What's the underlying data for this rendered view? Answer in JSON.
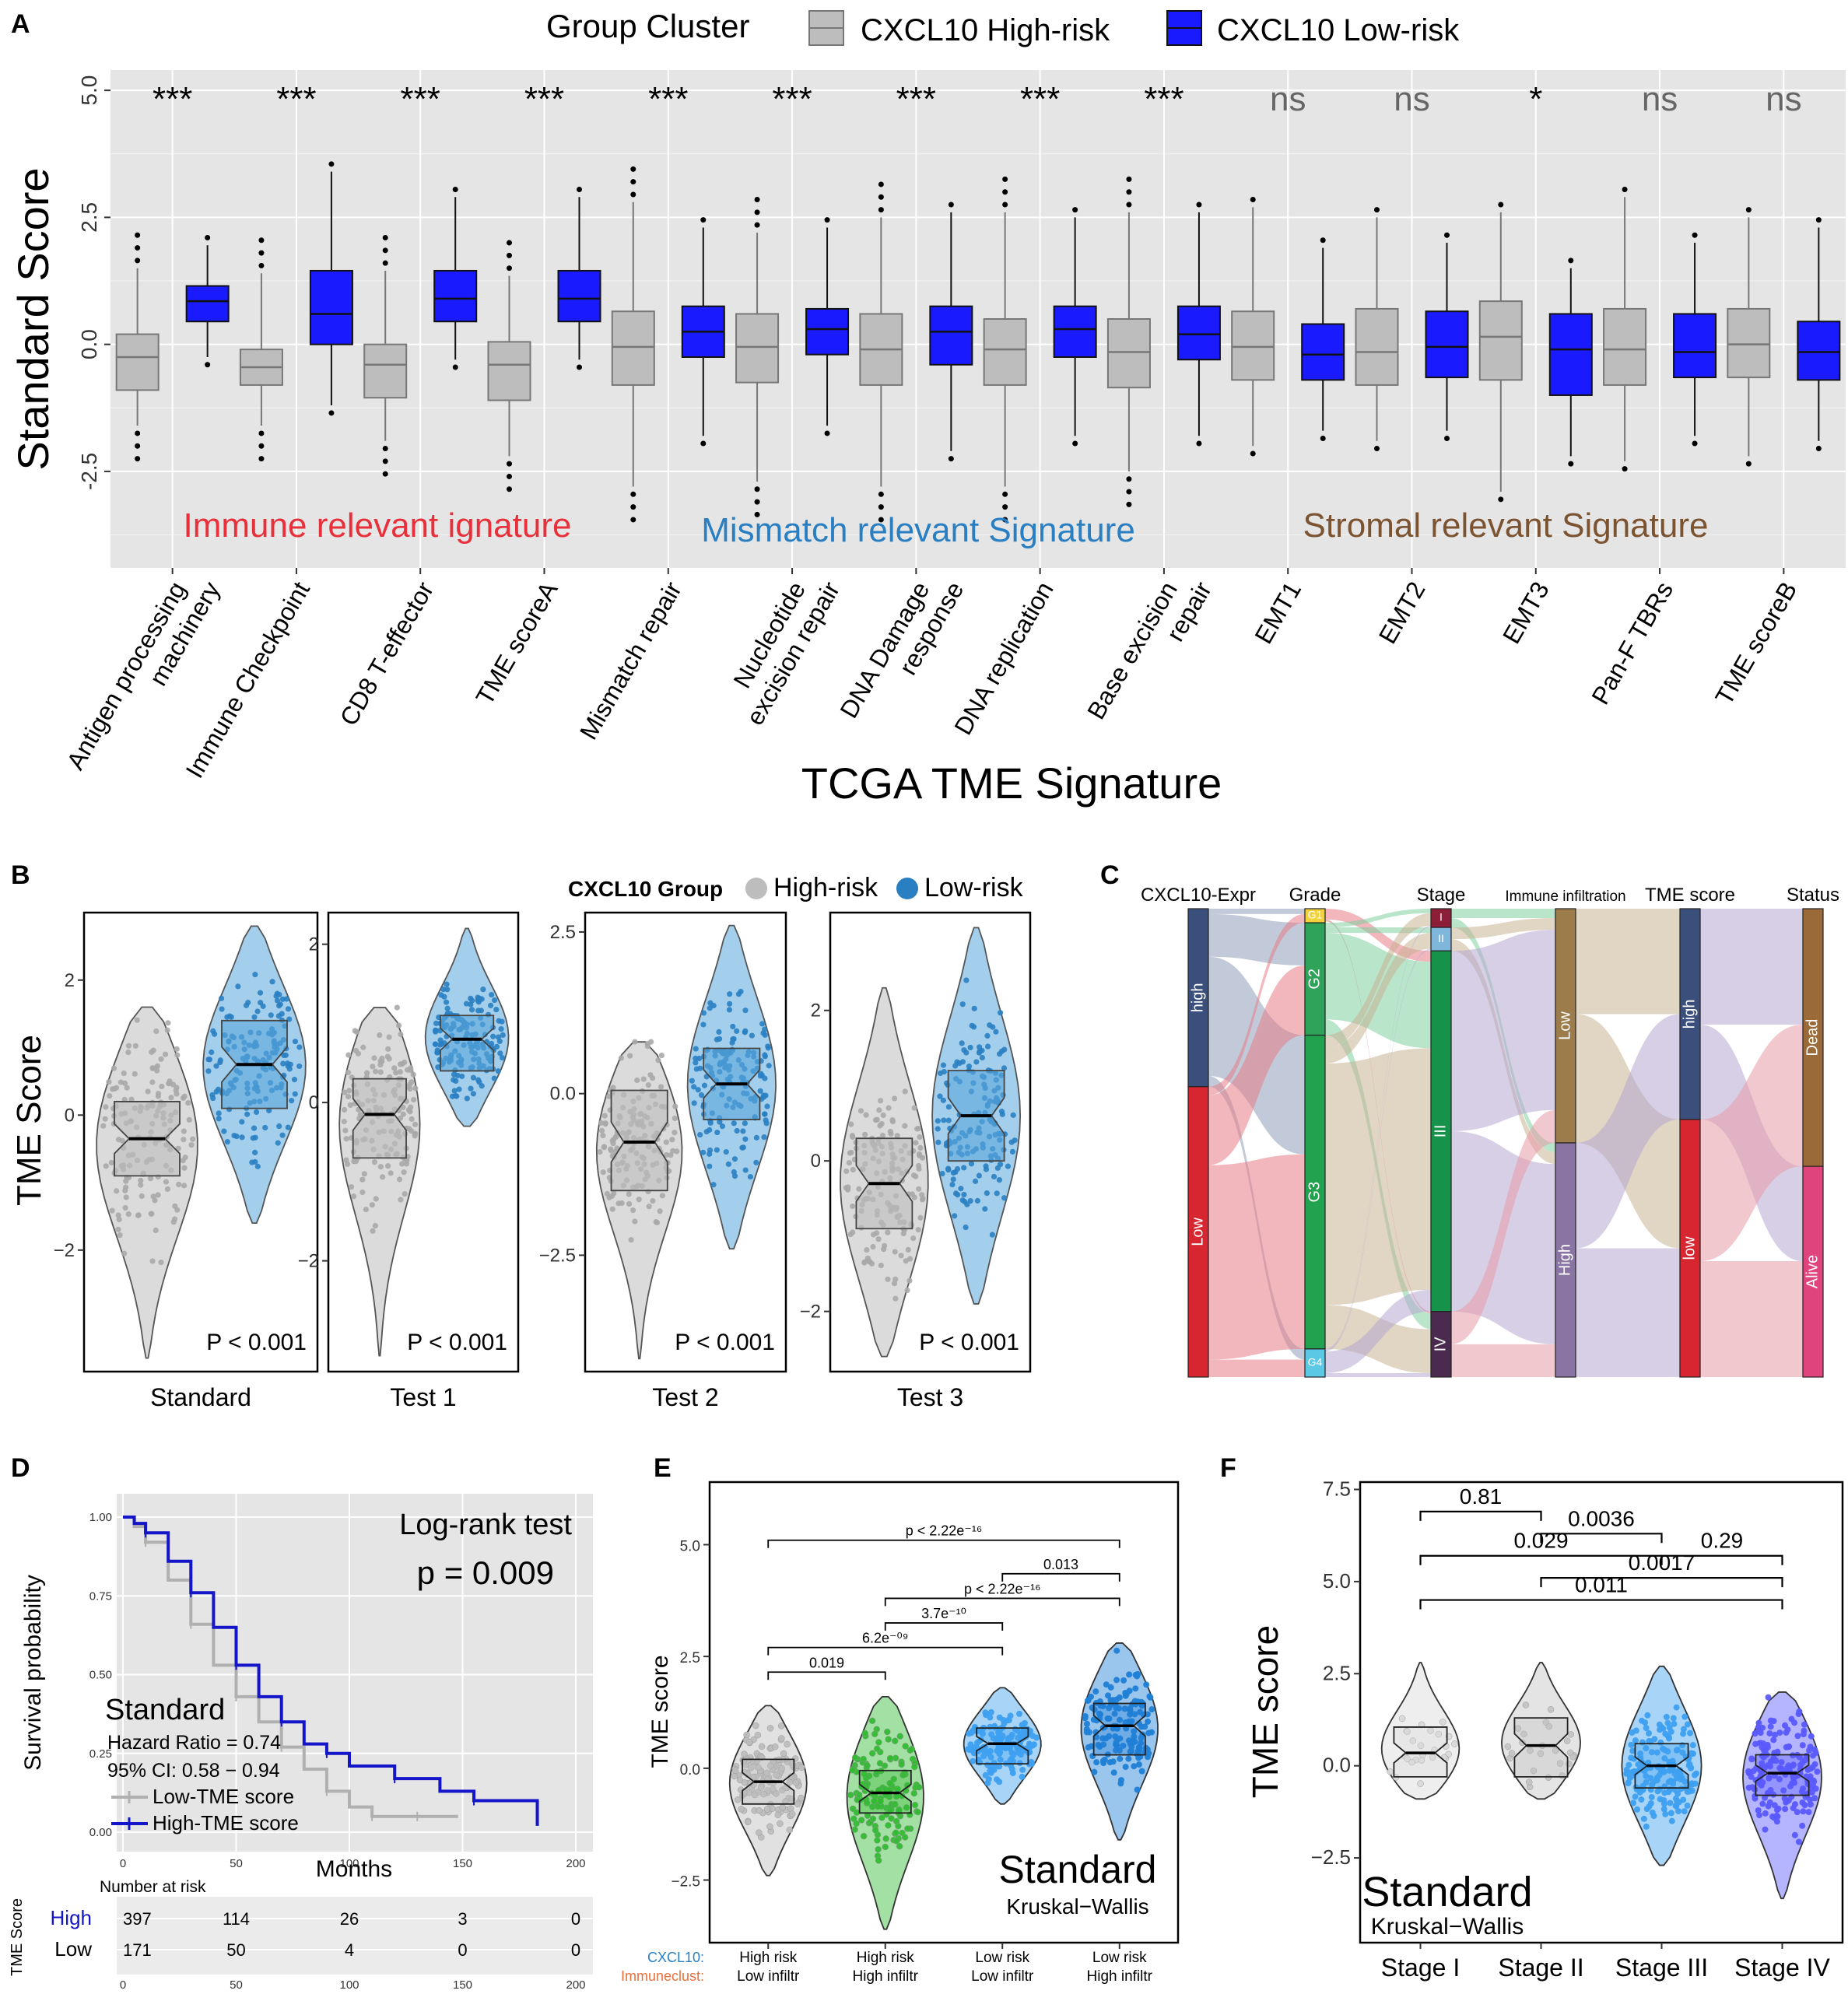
{
  "figure": {
    "panel_labels": [
      "A",
      "B",
      "C",
      "D",
      "E",
      "F"
    ],
    "colors": {
      "high_gray": "#bdbdbd",
      "low_blue": "#1a1aff",
      "test_blue": "#2a7fc2",
      "plot_bg": "#e5e5e5",
      "red_label": "#e8303a",
      "blue_label": "#2a7fc2",
      "brown_label": "#7b5330"
    }
  },
  "chart_data": [
    {
      "panel": "A",
      "type": "box",
      "legend_title": "Group Cluster",
      "legend": [
        "CXCL10 High-risk",
        "CXCL10 Low-risk"
      ],
      "ylabel": "Standard Score",
      "xlabel": "TCGA TME Signature",
      "ylim": [
        -4.4,
        5.4
      ],
      "yticks": [
        -2.5,
        0.0,
        2.5,
        5.0
      ],
      "ytick_labels": [
        "-2.5",
        "0.0",
        "2.5",
        "5.0"
      ],
      "categories": [
        [
          "Antigen processing",
          "machinery"
        ],
        [
          "Immune Checkpoint"
        ],
        [
          "CD8 T-effector"
        ],
        [
          "TME scoreA"
        ],
        [
          "Mismatch repair"
        ],
        [
          "Nucleotide",
          "excision repair"
        ],
        [
          "DNA Damage",
          "response"
        ],
        [
          "DNA replication"
        ],
        [
          "Base excision",
          "repair"
        ],
        [
          "EMT1"
        ],
        [
          "EMT2"
        ],
        [
          "EMT3"
        ],
        [
          "Pan-F TBRs"
        ],
        [
          "TME scoreB"
        ]
      ],
      "significance": [
        "***",
        "***",
        "***",
        "***",
        "***",
        "***",
        "***",
        "***",
        "***",
        "ns",
        "ns",
        "*",
        "ns",
        "ns"
      ],
      "group_annotations": [
        "Immune relevant ignature",
        "Mismatch relevant  Signature",
        "Stromal relevant Signature"
      ],
      "series": [
        {
          "name": "CXCL10 High-risk",
          "boxes": [
            [
              -1.6,
              -0.9,
              -0.25,
              0.2,
              1.5
            ],
            [
              -1.6,
              -0.8,
              -0.45,
              -0.1,
              1.4
            ],
            [
              -1.9,
              -1.05,
              -0.4,
              0.0,
              1.45
            ],
            [
              -2.2,
              -1.1,
              -0.4,
              0.05,
              1.35
            ],
            [
              -2.8,
              -0.8,
              -0.05,
              0.65,
              2.8
            ],
            [
              -2.7,
              -0.75,
              -0.05,
              0.6,
              2.2
            ],
            [
              -2.8,
              -0.8,
              -0.1,
              0.6,
              2.5
            ],
            [
              -2.8,
              -0.8,
              -0.1,
              0.5,
              2.6
            ],
            [
              -2.5,
              -0.85,
              -0.15,
              0.5,
              2.6
            ],
            [
              -2.0,
              -0.7,
              -0.05,
              0.65,
              2.7
            ],
            [
              -1.9,
              -0.8,
              -0.15,
              0.7,
              2.5
            ],
            [
              -2.9,
              -0.7,
              0.15,
              0.85,
              2.6
            ],
            [
              -2.3,
              -0.8,
              -0.1,
              0.7,
              2.9
            ],
            [
              -2.2,
              -0.65,
              0.0,
              0.7,
              2.5
            ]
          ]
        },
        {
          "name": "CXCL10 Low-risk",
          "boxes": [
            [
              -0.25,
              0.45,
              0.85,
              1.15,
              1.95
            ],
            [
              -1.2,
              0.0,
              0.6,
              1.45,
              3.4
            ],
            [
              -0.3,
              0.45,
              0.9,
              1.45,
              2.9
            ],
            [
              -0.3,
              0.45,
              0.9,
              1.45,
              2.9
            ],
            [
              -1.8,
              -0.25,
              0.25,
              0.75,
              2.3
            ],
            [
              -1.6,
              -0.2,
              0.3,
              0.7,
              2.3
            ],
            [
              -2.1,
              -0.4,
              0.25,
              0.75,
              2.6
            ],
            [
              -1.8,
              -0.25,
              0.3,
              0.75,
              2.5
            ],
            [
              -1.8,
              -0.3,
              0.2,
              0.75,
              2.6
            ],
            [
              -1.7,
              -0.7,
              -0.2,
              0.4,
              1.9
            ],
            [
              -1.7,
              -0.65,
              -0.05,
              0.65,
              2.0
            ],
            [
              -2.2,
              -1.0,
              -0.1,
              0.6,
              1.5
            ],
            [
              -1.8,
              -0.65,
              -0.15,
              0.6,
              2.0
            ],
            [
              -1.9,
              -0.7,
              -0.15,
              0.45,
              2.3
            ]
          ]
        }
      ]
    },
    {
      "panel": "B",
      "type": "violin-box",
      "legend_title": "CXCL10 Group",
      "legend": [
        "High-risk",
        "Low-risk"
      ],
      "ylabel": "TME Score",
      "facets": [
        {
          "label": "Standard",
          "p": "P < 0.001",
          "ylim": [
            -3.8,
            3.0
          ],
          "yticks": [
            -2,
            0,
            2
          ],
          "ytick_labels": [
            "−2",
            "0",
            "2"
          ],
          "high": {
            "box": [
              -1.3,
              -0.9,
              -0.35,
              0.2,
              1.0
            ],
            "range": [
              -3.6,
              1.6
            ]
          },
          "low": {
            "box": [
              0.1,
              0.1,
              0.75,
              1.4,
              2.0
            ],
            "range": [
              -1.6,
              2.8
            ]
          }
        },
        {
          "label": "Test 1",
          "p": "P < 0.001",
          "ylim": [
            -3.4,
            2.4
          ],
          "yticks": [
            -2,
            0,
            2
          ],
          "ytick_labels": [
            "−2",
            "0",
            "2"
          ],
          "high": {
            "box": [
              -1.2,
              -0.7,
              -0.15,
              0.3,
              0.9
            ],
            "range": [
              -3.2,
              1.2
            ]
          },
          "low": {
            "box": [
              0.0,
              0.4,
              0.8,
              1.1,
              1.6
            ],
            "range": [
              -0.3,
              2.2
            ]
          }
        },
        {
          "label": "Test 2",
          "p": "P < 0.001",
          "ylim": [
            -4.3,
            2.8
          ],
          "yticks": [
            -2.5,
            0.0,
            2.5
          ],
          "ytick_labels": [
            "−2.5",
            "0.0",
            "2.5"
          ],
          "high": {
            "box": [
              -2.0,
              -1.5,
              -0.75,
              0.05,
              0.8
            ],
            "range": [
              -4.1,
              0.8
            ]
          },
          "low": {
            "box": [
              -0.5,
              -0.4,
              0.15,
              0.7,
              1.5
            ],
            "range": [
              -2.4,
              2.6
            ]
          }
        },
        {
          "label": "Test 3",
          "p": "P < 0.001",
          "ylim": [
            -2.8,
            3.3
          ],
          "yticks": [
            -2,
            0,
            2
          ],
          "ytick_labels": [
            "−2",
            "0",
            "2"
          ],
          "high": {
            "box": [
              -1.4,
              -0.9,
              -0.3,
              0.3,
              1.0
            ],
            "range": [
              -2.6,
              2.3
            ]
          },
          "low": {
            "box": [
              -0.3,
              0.0,
              0.6,
              1.2,
              1.8
            ],
            "range": [
              -1.9,
              3.1
            ]
          }
        }
      ]
    },
    {
      "panel": "C",
      "type": "alluvial",
      "axes": [
        "CXCL10-Expr",
        "Grade",
        "Stage",
        "Immune infiltration",
        "TME score",
        "Status"
      ],
      "strata": {
        "CXCL10-Expr": [
          [
            "high",
            0.38
          ],
          [
            "Low",
            0.62
          ]
        ],
        "Grade": [
          [
            "G1",
            0.03
          ],
          [
            "G2",
            0.24
          ],
          [
            "G3",
            0.67
          ],
          [
            "G4",
            0.06
          ]
        ],
        "Stage": [
          [
            "I",
            0.04
          ],
          [
            "II",
            0.05
          ],
          [
            "III",
            0.77
          ],
          [
            "IV",
            0.14
          ]
        ],
        "Immune infiltration": [
          [
            "Low",
            0.5
          ],
          [
            "High",
            0.5
          ]
        ],
        "TME score": [
          [
            "high",
            0.45
          ],
          [
            "low",
            0.55
          ]
        ],
        "Status": [
          [
            "Dead",
            0.55
          ],
          [
            "Alive",
            0.45
          ]
        ]
      }
    },
    {
      "panel": "D",
      "type": "survival",
      "title": "Log-rank test",
      "pvalue": "p = 0.009",
      "cohort": "Standard",
      "hazard_ratio": "Hazard Ratio = 0.74",
      "ci": "95% CI: 0.58 − 0.94",
      "legend": [
        "Low-TME score",
        "High-TME score"
      ],
      "ylabel": "Survival probability",
      "xlabel": "Months",
      "xlim": [
        0,
        200
      ],
      "ylim": [
        0,
        1
      ],
      "xticks": [
        0,
        50,
        100,
        150,
        200
      ],
      "yticks": [
        "0.00",
        "0.25",
        "0.50",
        "0.75",
        "1.00"
      ],
      "series": [
        {
          "name": "Low-TME score",
          "x": [
            0,
            5,
            10,
            20,
            30,
            40,
            50,
            60,
            70,
            80,
            90,
            100,
            110,
            120,
            130,
            148
          ],
          "y": [
            1.0,
            0.97,
            0.92,
            0.8,
            0.66,
            0.53,
            0.43,
            0.35,
            0.27,
            0.2,
            0.13,
            0.08,
            0.05,
            0.05,
            0.05,
            0.05
          ]
        },
        {
          "name": "High-TME score",
          "x": [
            0,
            5,
            10,
            20,
            30,
            40,
            50,
            60,
            70,
            80,
            90,
            100,
            120,
            140,
            155,
            170,
            183
          ],
          "y": [
            1.0,
            0.98,
            0.95,
            0.86,
            0.76,
            0.65,
            0.53,
            0.43,
            0.35,
            0.28,
            0.25,
            0.21,
            0.17,
            0.13,
            0.1,
            0.1,
            0.02
          ]
        }
      ],
      "risk_table": {
        "title": "Number at risk",
        "ylabel": "TME Score",
        "rows": [
          {
            "label": "High",
            "values": [
              "397",
              "114",
              "26",
              "3",
              "0"
            ]
          },
          {
            "label": "Low",
            "values": [
              "171",
              "50",
              "4",
              "0",
              "0"
            ]
          }
        ]
      }
    },
    {
      "panel": "E",
      "type": "violin-box",
      "ylabel": "TME score",
      "cohort": "Standard",
      "test": "Kruskal−Wallis",
      "ylim": [
        -3.9,
        6.4
      ],
      "yticks": [
        -2.5,
        0.0,
        2.5,
        5.0
      ],
      "ytick_labels": [
        "−2.5",
        "0.0",
        "2.5",
        "5.0"
      ],
      "row_labels": [
        "CXCL10:",
        "Immuneclust:"
      ],
      "categories": [
        [
          "High risk",
          "Low infiltr"
        ],
        [
          "High risk",
          "High infiltr"
        ],
        [
          "Low risk",
          "Low infiltr"
        ],
        [
          "Low risk",
          "High infiltr"
        ]
      ],
      "colors": [
        "#bdbdbd",
        "#33bb33",
        "#3ea0f0",
        "#1f7fd6"
      ],
      "groups": [
        {
          "box": [
            -1.2,
            -0.8,
            -0.3,
            0.2,
            1.0
          ],
          "range": [
            -2.4,
            1.4
          ]
        },
        {
          "box": [
            -1.4,
            -1.0,
            -0.55,
            -0.05,
            0.7
          ],
          "range": [
            -3.6,
            1.6
          ]
        },
        {
          "box": [
            -0.2,
            0.1,
            0.55,
            0.9,
            1.3
          ],
          "range": [
            -0.8,
            1.8
          ]
        },
        {
          "box": [
            -0.3,
            0.3,
            0.95,
            1.45,
            2.2
          ],
          "range": [
            -1.6,
            2.8
          ]
        }
      ],
      "comparisons": [
        {
          "pair": [
            1,
            2
          ],
          "label": "0.019"
        },
        {
          "pair": [
            1,
            3
          ],
          "label": "6.2e⁻⁰⁹"
        },
        {
          "pair": [
            2,
            3
          ],
          "label": "3.7e⁻¹⁰"
        },
        {
          "pair": [
            2,
            4
          ],
          "label": "p < 2.22e⁻¹⁶"
        },
        {
          "pair": [
            3,
            4
          ],
          "label": "0.013"
        },
        {
          "pair": [
            1,
            4
          ],
          "label": "p < 2.22e⁻¹⁶"
        }
      ]
    },
    {
      "panel": "F",
      "type": "violin-box",
      "ylabel": "TME score",
      "cohort": "Standard",
      "test": "Kruskal−Wallis",
      "ylim": [
        -4.8,
        7.7
      ],
      "yticks": [
        -2.5,
        0.0,
        2.5,
        5.0,
        7.5
      ],
      "ytick_labels": [
        "−2.5",
        "0.0",
        "2.5",
        "5.0",
        "7.5"
      ],
      "categories": [
        "Stage I",
        "Stage II",
        "Stage III",
        "Stage IV"
      ],
      "colors": [
        "#d9d9d9",
        "#c4c4c4",
        "#3ea0f0",
        "#5a5aff"
      ],
      "groups": [
        {
          "box": [
            -0.9,
            -0.3,
            0.35,
            1.05,
            2.8
          ],
          "range": [
            -0.9,
            2.8
          ]
        },
        {
          "box": [
            -0.9,
            -0.3,
            0.55,
            1.3,
            2.8
          ],
          "range": [
            -0.9,
            2.8
          ]
        },
        {
          "box": [
            -1.5,
            -0.6,
            0.0,
            0.6,
            2.3
          ],
          "range": [
            -2.7,
            2.7
          ]
        },
        {
          "box": [
            -1.8,
            -0.8,
            -0.2,
            0.3,
            1.5
          ],
          "range": [
            -3.6,
            2.0
          ]
        }
      ],
      "comparisons": [
        {
          "pair": [
            1,
            2
          ],
          "label": "0.81"
        },
        {
          "pair": [
            2,
            3
          ],
          "label": "0.0036"
        },
        {
          "pair": [
            1,
            3
          ],
          "label": "0.029"
        },
        {
          "pair": [
            3,
            4
          ],
          "label": "0.29"
        },
        {
          "pair": [
            2,
            4
          ],
          "label": "0.0017"
        },
        {
          "pair": [
            1,
            4
          ],
          "label": "0.011"
        }
      ]
    }
  ]
}
